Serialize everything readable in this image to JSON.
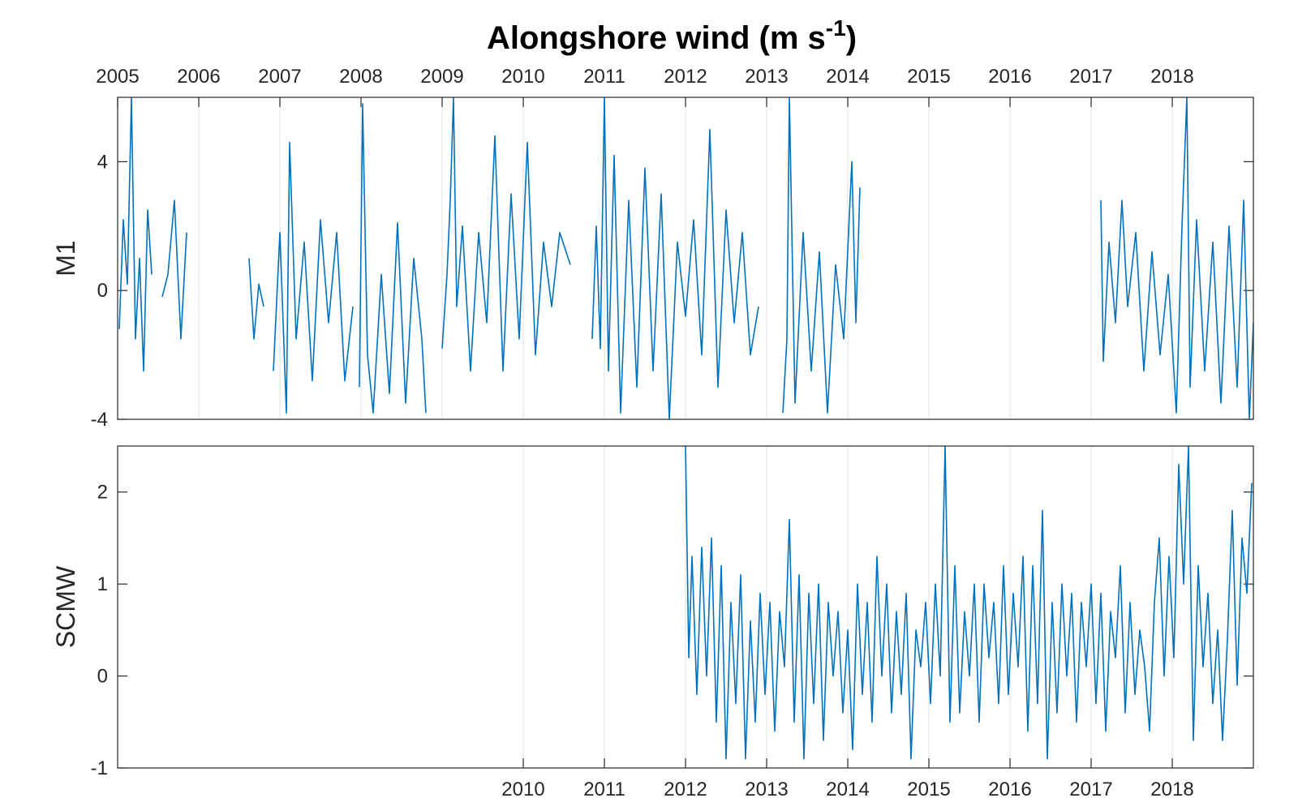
{
  "colors": {
    "series": "#0072BD",
    "grid": "#dfdfdf",
    "axis": "#262626"
  },
  "title": {
    "main": "Alongshore wind (m s",
    "sup": "-1",
    "close": ")"
  },
  "chart_data": [
    {
      "type": "line",
      "panel": "top",
      "ylabel": "M1",
      "xlim": [
        2005,
        2019
      ],
      "ylim": [
        -4,
        6
      ],
      "yticks": [
        -4,
        0,
        4
      ],
      "xticks": [
        2005,
        2006,
        2007,
        2008,
        2009,
        2010,
        2011,
        2012,
        2013,
        2014,
        2015,
        2016,
        2017,
        2018
      ],
      "xtick_position": "top",
      "grid": "vertical",
      "segments": [
        {
          "x": [
            2005.02,
            2005.07,
            2005.12,
            2005.17,
            2005.22,
            2005.27,
            2005.32,
            2005.37,
            2005.42
          ],
          "y": [
            -1.2,
            2.2,
            0.2,
            6.0,
            -1.5,
            1.0,
            -2.5,
            2.5,
            0.5
          ]
        },
        {
          "x": [
            2005.55,
            2005.62,
            2005.7,
            2005.78,
            2005.85
          ],
          "y": [
            -0.2,
            0.5,
            2.8,
            -1.5,
            1.8
          ]
        },
        {
          "x": [
            2006.62,
            2006.68,
            2006.74,
            2006.8
          ],
          "y": [
            1.0,
            -1.5,
            0.2,
            -0.5
          ]
        },
        {
          "x": [
            2006.92,
            2007.0,
            2007.08,
            2007.12,
            2007.2,
            2007.3,
            2007.4,
            2007.5,
            2007.6,
            2007.7,
            2007.8,
            2007.9
          ],
          "y": [
            -2.5,
            1.8,
            -3.8,
            4.6,
            -1.5,
            1.5,
            -2.8,
            2.2,
            -1.0,
            1.8,
            -2.8,
            -0.5
          ]
        },
        {
          "x": [
            2007.98,
            2008.02,
            2008.08,
            2008.15,
            2008.25,
            2008.35,
            2008.45,
            2008.55,
            2008.65,
            2008.75,
            2008.8
          ],
          "y": [
            -3.0,
            5.8,
            -2.0,
            -3.8,
            0.5,
            -3.2,
            2.1,
            -3.5,
            1.0,
            -1.5,
            -3.8
          ]
        },
        {
          "x": [
            2009.0,
            2009.06,
            2009.1,
            2009.14,
            2009.18,
            2009.25,
            2009.35,
            2009.45,
            2009.55,
            2009.65,
            2009.75,
            2009.85,
            2009.95,
            2010.05,
            2010.15,
            2010.25,
            2010.35,
            2010.45,
            2010.58
          ],
          "y": [
            -1.8,
            0.5,
            2.8,
            6.0,
            -0.5,
            2.0,
            -2.5,
            1.8,
            -1.0,
            4.8,
            -2.5,
            3.0,
            -1.5,
            4.6,
            -2.0,
            1.5,
            -0.5,
            1.8,
            0.8
          ]
        },
        {
          "x": [
            2010.85,
            2010.9,
            2010.95,
            2011.0,
            2011.05,
            2011.12,
            2011.2,
            2011.3,
            2011.4,
            2011.5,
            2011.6,
            2011.7,
            2011.8,
            2011.9,
            2012.0,
            2012.1,
            2012.2,
            2012.3,
            2012.4,
            2012.5,
            2012.6,
            2012.7,
            2012.8,
            2012.9
          ],
          "y": [
            -1.5,
            2.0,
            -1.8,
            6.0,
            -2.5,
            4.2,
            -3.8,
            2.8,
            -3.0,
            3.8,
            -2.5,
            3.0,
            -4.0,
            1.5,
            -0.8,
            2.2,
            -2.0,
            5.0,
            -3.0,
            2.5,
            -1.0,
            1.8,
            -2.0,
            -0.5
          ]
        },
        {
          "x": [
            2013.2,
            2013.25,
            2013.28,
            2013.35,
            2013.45,
            2013.55,
            2013.65,
            2013.75,
            2013.85,
            2013.95,
            2014.05,
            2014.1,
            2014.15
          ],
          "y": [
            -3.8,
            -1.5,
            6.0,
            -3.5,
            1.8,
            -2.5,
            1.2,
            -3.8,
            0.8,
            -1.5,
            4.0,
            -1.0,
            3.2
          ]
        },
        {
          "x": [
            2017.12,
            2017.15,
            2017.22,
            2017.3,
            2017.38,
            2017.45,
            2017.55,
            2017.65,
            2017.75,
            2017.85,
            2017.95,
            2018.05,
            2018.12,
            2018.18,
            2018.22,
            2018.3,
            2018.4,
            2018.5,
            2018.6,
            2018.7,
            2018.8,
            2018.88,
            2018.95,
            2019.0
          ],
          "y": [
            2.8,
            -2.2,
            1.5,
            -1.0,
            2.8,
            -0.5,
            1.8,
            -2.5,
            1.2,
            -2.0,
            0.5,
            -3.8,
            2.0,
            6.0,
            -3.0,
            2.2,
            -2.5,
            1.5,
            -3.5,
            2.0,
            -3.0,
            2.8,
            -4.0,
            -1.0
          ]
        }
      ]
    },
    {
      "type": "line",
      "panel": "bottom",
      "ylabel": "SCMW",
      "xlim": [
        2005,
        2019
      ],
      "ylim": [
        -1,
        2.5
      ],
      "yticks": [
        -1,
        0,
        1,
        2
      ],
      "xticks": [
        2010,
        2011,
        2012,
        2013,
        2014,
        2015,
        2016,
        2017,
        2018
      ],
      "xtick_position": "bottom",
      "grid": "vertical",
      "segments": [
        {
          "x": [
            2012.0,
            2012.04,
            2012.08,
            2012.14,
            2012.2,
            2012.26,
            2012.32,
            2012.38,
            2012.44,
            2012.5,
            2012.56,
            2012.62,
            2012.68,
            2012.74,
            2012.8,
            2012.86,
            2012.92,
            2012.98,
            2013.04,
            2013.1,
            2013.16,
            2013.22,
            2013.28,
            2013.34,
            2013.4,
            2013.46,
            2013.52,
            2013.58,
            2013.64,
            2013.7,
            2013.76,
            2013.82,
            2013.88,
            2013.94,
            2014.0,
            2014.06,
            2014.12,
            2014.18,
            2014.24,
            2014.3,
            2014.36,
            2014.42,
            2014.48,
            2014.54,
            2014.6,
            2014.66,
            2014.72,
            2014.78,
            2014.84,
            2014.9,
            2014.96,
            2015.02,
            2015.08,
            2015.14,
            2015.2,
            2015.26,
            2015.32,
            2015.38,
            2015.44,
            2015.5,
            2015.56,
            2015.62,
            2015.68,
            2015.74,
            2015.8,
            2015.86,
            2015.92,
            2015.98,
            2016.04,
            2016.1,
            2016.16,
            2016.22,
            2016.28,
            2016.34,
            2016.4,
            2016.46,
            2016.52,
            2016.58,
            2016.64,
            2016.7,
            2016.76,
            2016.82,
            2016.88,
            2016.94,
            2017.0,
            2017.06,
            2017.12,
            2017.18,
            2017.24,
            2017.3,
            2017.36,
            2017.42,
            2017.48,
            2017.54,
            2017.6,
            2017.66,
            2017.72,
            2017.78,
            2017.84,
            2017.9,
            2017.96,
            2018.02,
            2018.08,
            2018.14,
            2018.2,
            2018.26,
            2018.32,
            2018.38,
            2018.44,
            2018.5,
            2018.56,
            2018.62,
            2018.68,
            2018.74,
            2018.8,
            2018.86,
            2018.92,
            2018.98
          ],
          "y": [
            2.5,
            0.2,
            1.3,
            -0.2,
            1.4,
            0.0,
            1.5,
            -0.5,
            1.2,
            -0.9,
            0.8,
            -0.3,
            1.1,
            -0.9,
            0.6,
            -0.5,
            0.9,
            -0.2,
            0.8,
            -0.6,
            0.7,
            0.1,
            1.7,
            -0.5,
            1.1,
            -0.9,
            0.9,
            -0.3,
            1.0,
            -0.7,
            0.8,
            0.0,
            0.7,
            -0.4,
            0.5,
            -0.8,
            1.0,
            -0.2,
            0.8,
            -0.5,
            1.3,
            0.0,
            1.0,
            -0.4,
            0.7,
            -0.2,
            0.9,
            -0.9,
            0.5,
            0.1,
            0.8,
            -0.3,
            1.0,
            0.0,
            2.5,
            -0.5,
            1.2,
            -0.4,
            0.7,
            0.0,
            1.0,
            -0.5,
            1.0,
            0.2,
            0.8,
            -0.3,
            1.2,
            -0.2,
            0.9,
            0.1,
            1.3,
            -0.6,
            1.2,
            -0.3,
            1.8,
            -0.9,
            0.8,
            -0.4,
            1.0,
            0.0,
            0.9,
            -0.5,
            0.8,
            0.1,
            1.0,
            -0.3,
            0.9,
            -0.6,
            0.7,
            0.2,
            1.2,
            -0.4,
            0.8,
            -0.2,
            0.5,
            0.1,
            -0.6,
            0.8,
            1.5,
            0.0,
            1.3,
            0.2,
            2.3,
            1.0,
            2.5,
            -0.7,
            1.2,
            0.1,
            0.9,
            -0.3,
            0.5,
            -0.7,
            0.4,
            1.8,
            -0.1,
            1.5,
            0.9,
            2.1
          ]
        }
      ]
    }
  ]
}
